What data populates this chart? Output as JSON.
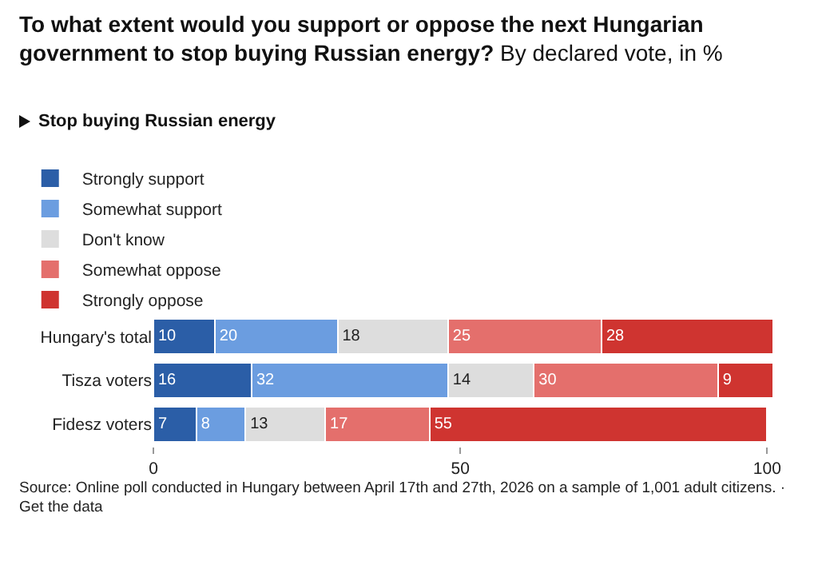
{
  "chart_data": {
    "type": "bar",
    "orientation": "horizontal",
    "stacked": true,
    "title": "To what extent would you support or oppose the next Hungarian government to stop buying Russian energy?",
    "subtitle": "By declared vote, in %",
    "legend_title": "Stop buying Russian energy",
    "categories": [
      "Hungary's total",
      "Tisza voters",
      "Fidesz voters"
    ],
    "series": [
      {
        "name": "Strongly support",
        "color": "#2b5ea7",
        "values": [
          10,
          16,
          7
        ]
      },
      {
        "name": "Somewhat support",
        "color": "#6b9de0",
        "values": [
          20,
          32,
          8
        ]
      },
      {
        "name": "Don't know",
        "color": "#dddddd",
        "values": [
          18,
          14,
          13
        ]
      },
      {
        "name": "Somewhat oppose",
        "color": "#e46f6c",
        "values": [
          25,
          30,
          17
        ]
      },
      {
        "name": "Strongly oppose",
        "color": "#cf3430",
        "values": [
          28,
          9,
          55
        ]
      }
    ],
    "xlim": [
      0,
      101
    ],
    "xticks": [
      0,
      50,
      100
    ],
    "data_labels": true,
    "legend": "top left",
    "grid": false,
    "annotations": [
      "Source: Online poll conducted in Hungary between April 17th and 27th, 2026 on a sample of 1,001 adult citizens. · Get the data"
    ]
  }
}
